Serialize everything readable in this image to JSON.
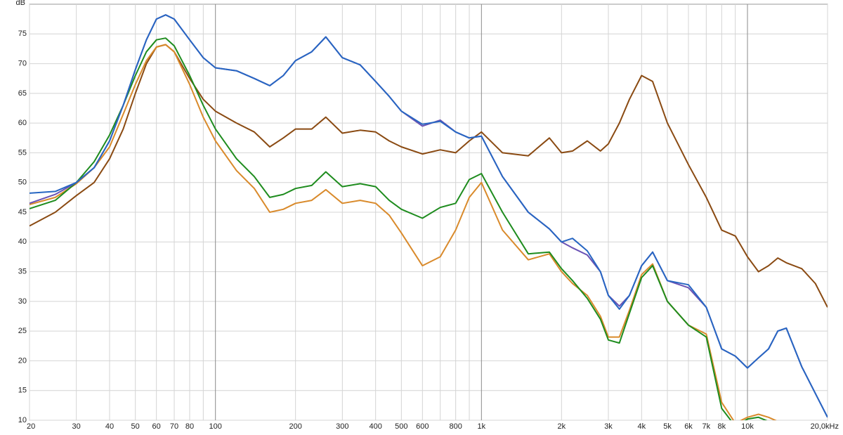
{
  "chart_data": {
    "type": "line",
    "y_label": "dB",
    "xscale": "log",
    "grid": true,
    "x": [
      20,
      25,
      30,
      35,
      40,
      45,
      50,
      55,
      60,
      65,
      70,
      80,
      90,
      100,
      120,
      140,
      160,
      180,
      200,
      230,
      260,
      300,
      350,
      400,
      450,
      500,
      600,
      700,
      800,
      900,
      1000,
      1200,
      1500,
      1800,
      2000,
      2200,
      2500,
      2800,
      3000,
      3300,
      3600,
      4000,
      4400,
      5000,
      6000,
      7000,
      8000,
      9000,
      10000,
      11000,
      12000,
      13000,
      14000,
      16000,
      18000,
      20000
    ],
    "series": [
      {
        "color": "#8a4a12",
        "values": [
          42.7,
          45,
          47.8,
          50,
          54,
          59,
          65,
          70,
          72.8,
          73.2,
          72,
          67.5,
          64,
          62,
          60,
          58.5,
          56,
          57.5,
          59,
          59,
          61,
          58.3,
          58.8,
          58.5,
          57,
          56,
          54.8,
          55.5,
          55,
          57,
          58.5,
          55,
          54.5,
          57.5,
          55,
          55.3,
          57,
          55.3,
          56.5,
          60,
          64,
          68,
          67,
          60,
          53,
          47.5,
          42,
          41,
          37.5,
          35,
          36,
          37.3,
          36.5,
          35.5,
          33,
          29
        ]
      },
      {
        "color": "#d98a2b",
        "values": [
          46.3,
          47.5,
          49.8,
          52.5,
          56,
          61.5,
          66.5,
          70.5,
          72.8,
          73.2,
          72,
          66.5,
          61,
          57,
          52,
          49,
          45,
          45.5,
          46.5,
          47,
          48.8,
          46.5,
          47,
          46.5,
          44.5,
          41.5,
          36,
          37.5,
          42,
          47.5,
          50,
          42,
          37,
          38,
          35,
          33,
          31,
          27.5,
          24,
          24,
          28.5,
          34.5,
          36.3,
          30,
          26,
          24.5,
          13,
          9.5,
          10.5,
          11,
          10.5,
          9.8,
          null,
          null,
          null,
          null
        ]
      },
      {
        "color": "#1e8c1e",
        "values": [
          45.6,
          47,
          50,
          53.5,
          58,
          63,
          68,
          72,
          74,
          74.3,
          73,
          68,
          63,
          59,
          54,
          51,
          47.5,
          48,
          49,
          49.5,
          51.8,
          49.3,
          49.8,
          49.3,
          47,
          45.5,
          44,
          45.8,
          46.5,
          50.5,
          51.5,
          45,
          38,
          38.3,
          35.5,
          33.5,
          30.5,
          27,
          23.5,
          23,
          28,
          34,
          36,
          30,
          26,
          24,
          12,
          9,
          10.2,
          10.5,
          9.8,
          9.5,
          null,
          null,
          null,
          null
        ]
      },
      {
        "color": "#6a52b4",
        "values": [
          46.5,
          48,
          50,
          52.5,
          57,
          63,
          69,
          74,
          77.5,
          78.2,
          77.5,
          74,
          71,
          69.3,
          68.8,
          67.5,
          66.3,
          68,
          70.5,
          72,
          74.5,
          71,
          69.8,
          67,
          64.5,
          62,
          59.5,
          60.5,
          58.5,
          57.5,
          57.8,
          51,
          45,
          42.2,
          40,
          39,
          37.8,
          35,
          31,
          29.2,
          31,
          36,
          38.3,
          33.5,
          32.3,
          29,
          22,
          20.8,
          18.8,
          20.5,
          22,
          25,
          25.5,
          19,
          14.5,
          10.5
        ]
      },
      {
        "color": "#2766c2",
        "values": [
          48.2,
          48.5,
          50,
          52.5,
          57,
          63,
          69,
          74,
          77.5,
          78.2,
          77.5,
          74,
          71,
          69.3,
          68.8,
          67.5,
          66.3,
          68,
          70.5,
          72,
          74.5,
          71,
          69.8,
          67,
          64.5,
          62,
          59.8,
          60.3,
          58.5,
          57.5,
          57.8,
          51,
          45,
          42.2,
          40,
          40.6,
          38.5,
          35,
          31,
          28.7,
          31,
          36,
          38.3,
          33.5,
          32.8,
          29,
          22,
          20.8,
          18.8,
          20.5,
          22,
          25,
          25.5,
          19,
          14.5,
          10.5
        ]
      }
    ],
    "xlim": [
      20,
      20000
    ],
    "xticks": [
      20,
      30,
      40,
      50,
      60,
      70,
      80,
      100,
      200,
      300,
      400,
      500,
      600,
      800,
      {
        "value": 1000,
        "label": "1k"
      },
      {
        "value": 2000,
        "label": "2k"
      },
      {
        "value": 3000,
        "label": "3k"
      },
      {
        "value": 4000,
        "label": "4k"
      },
      {
        "value": 5000,
        "label": "5k"
      },
      {
        "value": 6000,
        "label": "6k"
      },
      {
        "value": 7000,
        "label": "7k"
      },
      {
        "value": 8000,
        "label": "8k"
      },
      {
        "value": 10000,
        "label": "10k"
      },
      {
        "value": 20000,
        "label": "20,0kHz"
      }
    ],
    "xminor": [
      90,
      700,
      900,
      9000
    ],
    "ylim": [
      10,
      80
    ],
    "yticks": [
      10,
      15,
      20,
      25,
      30,
      35,
      40,
      45,
      50,
      55,
      60,
      65,
      70,
      75
    ]
  }
}
